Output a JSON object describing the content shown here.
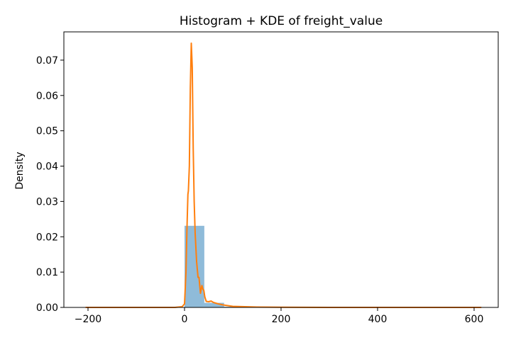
{
  "chart_data": {
    "type": "histogram",
    "title": "Histogram + KDE of freight_value",
    "xlabel": "",
    "ylabel": "Density",
    "xlim": [
      -250,
      650
    ],
    "ylim": [
      0,
      0.078
    ],
    "xticks": [
      -200,
      0,
      200,
      400,
      600
    ],
    "yticks": [
      0.0,
      0.01,
      0.02,
      0.03,
      0.04,
      0.05,
      0.06,
      0.07
    ],
    "grid": false,
    "histogram": {
      "color": "#1f77b4",
      "alpha": 0.5,
      "bins": [
        {
          "x0": 0,
          "x1": 41,
          "density": 0.0231
        },
        {
          "x0": 41,
          "x1": 82,
          "density": 0.0013
        },
        {
          "x0": 82,
          "x1": 123,
          "density": 0.0002
        },
        {
          "x0": 123,
          "x1": 164,
          "density": 5e-05
        },
        {
          "x0": 164,
          "x1": 205,
          "density": 2e-05
        }
      ]
    },
    "kde": {
      "color": "#ff7f0e",
      "x": [
        -205,
        -100,
        -20,
        -5,
        0,
        3,
        5,
        7,
        8,
        10,
        12,
        14,
        16,
        18,
        20,
        22,
        25,
        28,
        30,
        33,
        36,
        38,
        40,
        42,
        45,
        50,
        55,
        60,
        70,
        80,
        100,
        150,
        200,
        300,
        400,
        500,
        615
      ],
      "y": [
        0,
        0,
        0,
        0.0002,
        0.001,
        0.01,
        0.022,
        0.032,
        0.033,
        0.04,
        0.062,
        0.0748,
        0.068,
        0.045,
        0.03,
        0.021,
        0.013,
        0.0085,
        0.0085,
        0.004,
        0.0062,
        0.0052,
        0.0048,
        0.003,
        0.0017,
        0.0016,
        0.0018,
        0.0014,
        0.001,
        0.0007,
        0.0003,
        0.0001,
        5e-05,
        0,
        0,
        0,
        0
      ]
    }
  }
}
